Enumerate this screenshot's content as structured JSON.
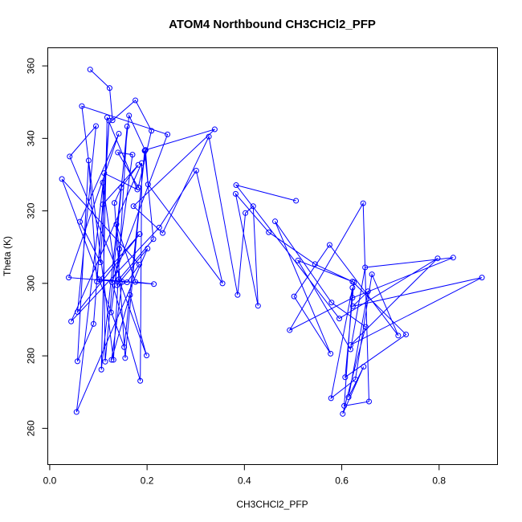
{
  "chart_data": {
    "type": "line",
    "title": "ATOM4 Northbound CH3CHCl2_PFP",
    "xlabel": "CH3CHCl2_PFP",
    "ylabel": "Theta (K)",
    "xlim": [
      -0.004,
      0.92
    ],
    "ylim": [
      250,
      365
    ],
    "xticks": [
      0.0,
      0.2,
      0.4,
      0.6,
      0.8
    ],
    "xtick_labels": [
      "0.0",
      "0.2",
      "0.4",
      "0.6",
      "0.8"
    ],
    "yticks": [
      260,
      280,
      300,
      320,
      340,
      360
    ],
    "ytick_labels": [
      "260",
      "280",
      "300",
      "320",
      "340",
      "360"
    ],
    "grid": false,
    "legend": "none",
    "series_color": "#0000ff",
    "marker": "open-circle",
    "series": [
      {
        "x": [
          0.083,
          0.123,
          0.129,
          0.176,
          0.209,
          0.182,
          0.14,
          0.17,
          0.126,
          0.143,
          0.137,
          0.176,
          0.214,
          0.102,
          0.185,
          0.057,
          0.095,
          0.041,
          0.149,
          0.127,
          0.165,
          0.199,
          0.142,
          0.213,
          0.195,
          0.155,
          0.133,
          0.147,
          0.182,
          0.109,
          0.097,
          0.08,
          0.057,
          0.09,
          0.122,
          0.104,
          0.062,
          0.142,
          0.039,
          0.159,
          0.184,
          0.025,
          0.153,
          0.196,
          0.163,
          0.106,
          0.118,
          0.18,
          0.112,
          0.055,
          0.201,
          0.138,
          0.109,
          0.114,
          0.159,
          0.131,
          0.066,
          0.242,
          0.128,
          0.186,
          0.189,
          0.044,
          0.225,
          0.301,
          0.355,
          0.202,
          0.197,
          0.339,
          0.172,
          0.232,
          0.327,
          0.386,
          0.402,
          0.418,
          0.428,
          0.382,
          0.45,
          0.545,
          0.625,
          0.607,
          0.732,
          0.622,
          0.51,
          0.618,
          0.648,
          0.829,
          0.622,
          0.493,
          0.644,
          0.656,
          0.605,
          0.622,
          0.578,
          0.628,
          0.662,
          0.716,
          0.575,
          0.502,
          0.577,
          0.463,
          0.579,
          0.649,
          0.602,
          0.645,
          0.614,
          0.654,
          0.623,
          0.888,
          0.618,
          0.797,
          0.595,
          0.383,
          0.506
        ],
        "y": [
          359,
          353.9,
          345,
          350.5,
          342.1,
          326.5,
          336.1,
          335.5,
          292,
          309.5,
          316.3,
          300.4,
          299.8,
          301.1,
          313.6,
          292.1,
          343.4,
          335,
          300.4,
          278.9,
          296.8,
          280.1,
          301.1,
          312.2,
          336.6,
          279.4,
          322.2,
          326.4,
          332.7,
          321.8,
          300.5,
          333.9,
          278.5,
          288.8,
          344.9,
          305.8,
          317,
          341.3,
          301.6,
          300.3,
          305.2,
          328.8,
          282.4,
          336.7,
          346.3,
          276.2,
          345.8,
          325.9,
          330.4,
          264.5,
          309.6,
          299.5,
          327.8,
          278.4,
          343.3,
          278.9,
          348.9,
          341.1,
          300.3,
          273.1,
          333.2,
          289.5,
          315.4,
          331.1,
          300,
          327.3,
          336.8,
          342.5,
          321.3,
          313.9,
          340.5,
          296.8,
          319.4,
          321.3,
          293.8,
          324.7,
          314.1,
          305.3,
          300.3,
          274.1,
          285.9,
          300.5,
          306.3,
          281.8,
          304.4,
          307.1,
          296,
          287.1,
          322.1,
          267.4,
          266.2,
          298.8,
          268.3,
          273.5,
          302.5,
          285.6,
          310.6,
          296.4,
          280.6,
          317.1,
          294.7,
          288,
          264,
          277,
          268.6,
          297.8,
          293.7,
          301.6,
          283,
          306.9,
          290.3,
          327.1,
          322.8
        ]
      }
    ]
  }
}
